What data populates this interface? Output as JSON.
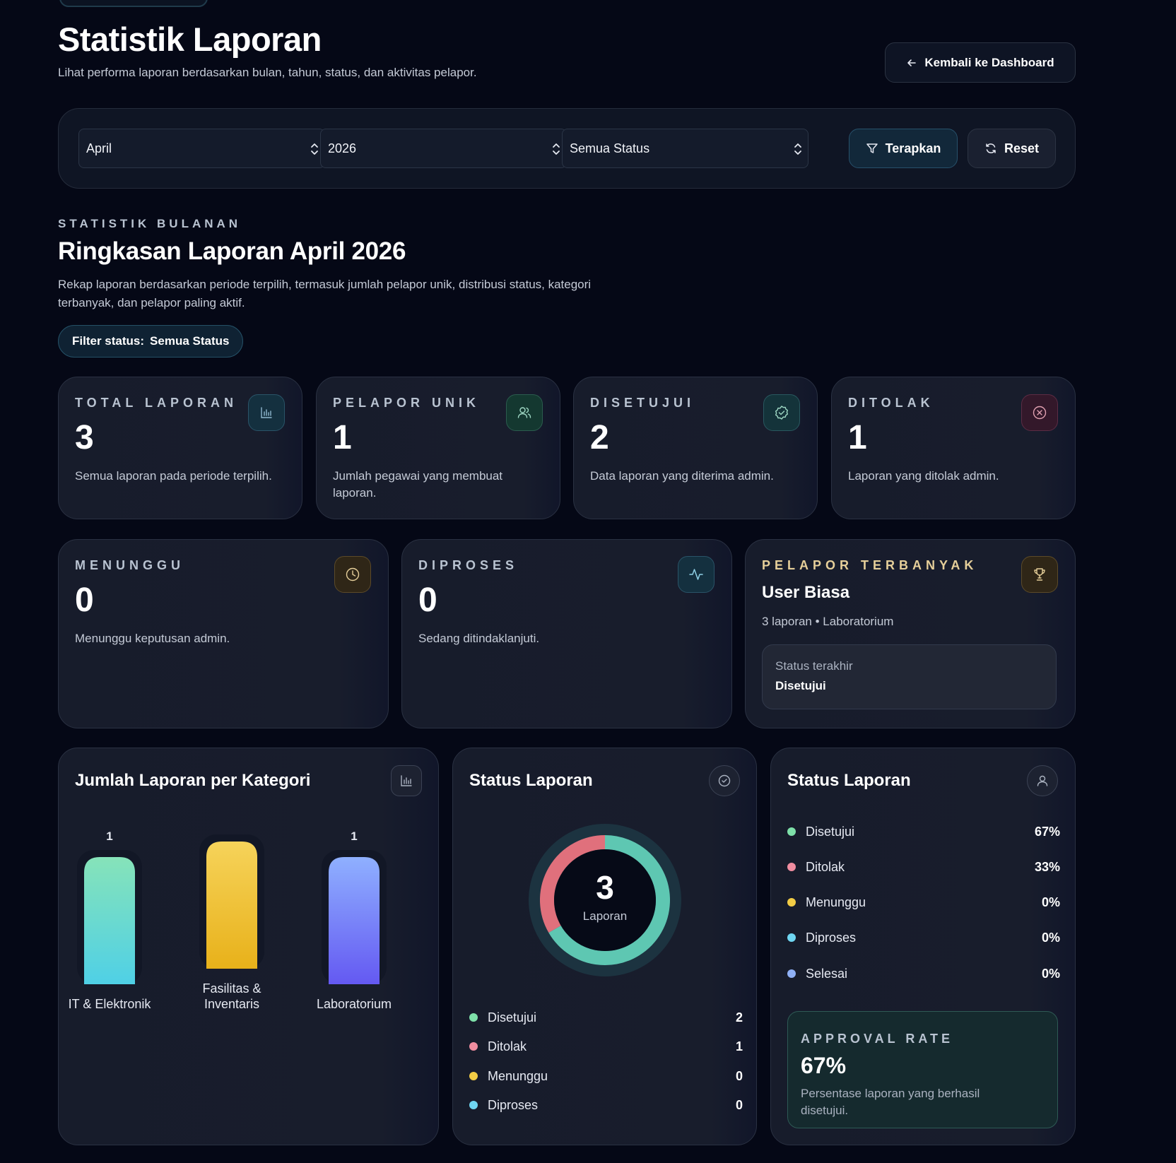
{
  "header": {
    "title": "Statistik Laporan",
    "subtitle": "Lihat performa laporan berdasarkan bulan, tahun, status, dan aktivitas pelapor.",
    "back_label": "Kembali ke Dashboard"
  },
  "filters": {
    "month": "April",
    "year": "2026",
    "status": "Semua Status",
    "apply_label": "Terapkan",
    "reset_label": "Reset"
  },
  "section": {
    "eyebrow": "STATISTIK BULANAN",
    "title": "Ringkasan Laporan April 2026",
    "description": "Rekap laporan berdasarkan periode terpilih, termasuk jumlah pelapor unik, distribusi status, kategori terbanyak, dan pelapor paling aktif.",
    "filter_pill_label": "Filter status:",
    "filter_pill_value": "Semua Status"
  },
  "stats": [
    {
      "label": "TOTAL LAPORAN",
      "value": "3",
      "desc": "Semua laporan pada periode terpilih.",
      "icon": "bar-chart-icon"
    },
    {
      "label": "PELAPOR UNIK",
      "value": "1",
      "desc": "Jumlah pegawai yang membuat laporan.",
      "icon": "users-icon"
    },
    {
      "label": "DISETUJUI",
      "value": "2",
      "desc": "Data laporan yang diterima admin.",
      "icon": "badge-check-icon"
    },
    {
      "label": "DITOLAK",
      "value": "1",
      "desc": "Laporan yang ditolak admin.",
      "icon": "x-circle-icon"
    },
    {
      "label": "MENUNGGU",
      "value": "0",
      "desc": "Menunggu keputusan admin.",
      "icon": "clock-icon"
    },
    {
      "label": "DIPROSES",
      "value": "0",
      "desc": "Sedang ditindaklanjuti.",
      "icon": "activity-icon"
    }
  ],
  "top_reporter": {
    "label": "PELAPOR TERBANYAK",
    "name": "User Biasa",
    "meta": "3 laporan • Laboratorium",
    "status_label": "Status terakhir",
    "status_value": "Disetujui",
    "icon": "trophy-icon"
  },
  "category_panel": {
    "title": "Jumlah Laporan per Kategori",
    "icon": "bar-chart-icon"
  },
  "chart_data": {
    "type": "bar",
    "categories": [
      "IT & Elektronik",
      "Fasilitas & Inventaris",
      "Laboratorium"
    ],
    "values": [
      1,
      1,
      1
    ],
    "colors": [
      [
        "#86e3b9",
        "#4fd0e6"
      ],
      [
        "#f6d35a",
        "#e8b11a"
      ],
      [
        "#8fb0ff",
        "#6459f2"
      ]
    ]
  },
  "status_panel": {
    "title": "Status Laporan",
    "icon": "check-circle-icon",
    "center_value": "3",
    "center_label": "Laporan",
    "segments": [
      {
        "name": "Disetujui",
        "value": 2,
        "color": "#5ec7b2"
      },
      {
        "name": "Ditolak",
        "value": 1,
        "color": "#e0707c"
      }
    ],
    "legend": [
      {
        "name": "Disetujui",
        "count": "2",
        "color": "#7ee0a9"
      },
      {
        "name": "Ditolak",
        "count": "1",
        "color": "#f08da0"
      },
      {
        "name": "Menunggu",
        "count": "0",
        "color": "#f2cc45"
      },
      {
        "name": "Diproses",
        "count": "0",
        "color": "#6fd6f2"
      }
    ]
  },
  "percent_panel": {
    "title": "Status Laporan",
    "icon": "user-icon",
    "rows": [
      {
        "name": "Disetujui",
        "pct": "67%",
        "color": "#7ee0a9"
      },
      {
        "name": "Ditolak",
        "pct": "33%",
        "color": "#f08da0"
      },
      {
        "name": "Menunggu",
        "pct": "0%",
        "color": "#f2cc45"
      },
      {
        "name": "Diproses",
        "pct": "0%",
        "color": "#6fd6f2"
      },
      {
        "name": "Selesai",
        "pct": "0%",
        "color": "#8fb0f5"
      }
    ],
    "approval_label": "APPROVAL RATE",
    "approval_value": "67%",
    "approval_desc": "Persentase laporan yang berhasil disetujui."
  }
}
